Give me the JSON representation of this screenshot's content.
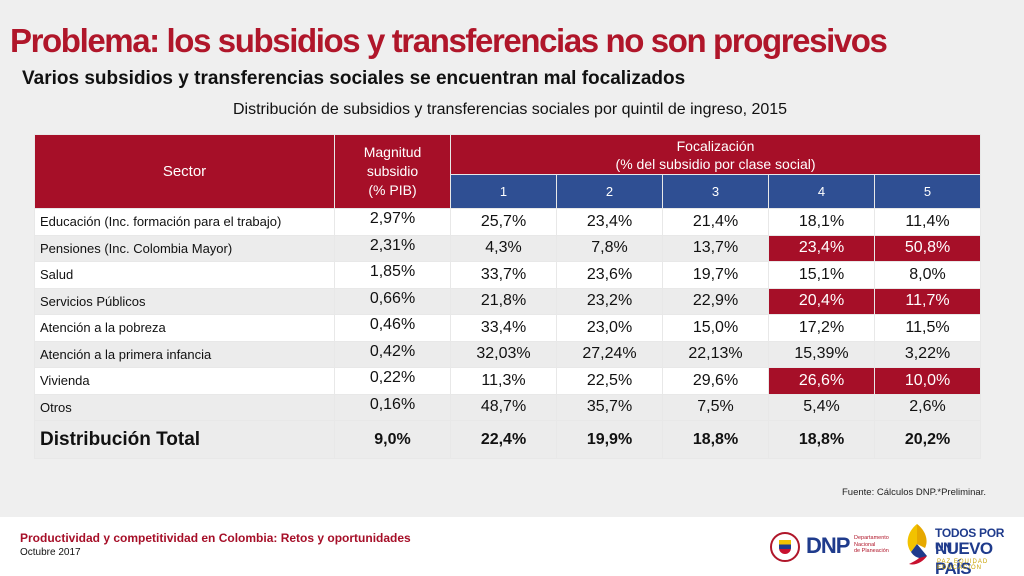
{
  "title": "Problema: los subsidios y transferencias no son progresivos",
  "subtitle": "Varios subsidios y transferencias sociales se encuentran mal focalizados",
  "table_caption": "Distribución de subsidios y transferencias sociales por quintil de ingreso, 2015",
  "table": {
    "header_sector": "Sector",
    "header_magnitude": [
      "Magnitud",
      "subsidio",
      "(% PIB)"
    ],
    "header_focalization": [
      "Focalización",
      "(% del subsidio por clase social)"
    ],
    "quintiles": [
      "1",
      "2",
      "3",
      "4",
      "5"
    ],
    "rows": [
      {
        "sector": "Educación (Inc. formación para el trabajo)",
        "magnitude": "2,97%",
        "values": [
          "25,7%",
          "23,4%",
          "21,4%",
          "18,1%",
          "11,4%"
        ]
      },
      {
        "sector": "Pensiones (Inc. Colombia Mayor)",
        "magnitude": "2,31%",
        "values": [
          "4,3%",
          "7,8%",
          "13,7%",
          "23,4%",
          "50,8%"
        ]
      },
      {
        "sector": "Salud",
        "magnitude": "1,85%",
        "values": [
          "33,7%",
          "23,6%",
          "19,7%",
          "15,1%",
          "8,0%"
        ]
      },
      {
        "sector": "Servicios Públicos",
        "magnitude": "0,66%",
        "values": [
          "21,8%",
          "23,2%",
          "22,9%",
          "20,4%",
          "11,7%"
        ]
      },
      {
        "sector": "Atención a la pobreza",
        "magnitude": "0,46%",
        "values": [
          "33,4%",
          "23,0%",
          "15,0%",
          "17,2%",
          "11,5%"
        ]
      },
      {
        "sector": "Atención a la primera infancia",
        "magnitude": "0,42%",
        "values": [
          "32,03%",
          "27,24%",
          "22,13%",
          "15,39%",
          "3,22%"
        ]
      },
      {
        "sector": "Vivienda",
        "magnitude": "0,22%",
        "values": [
          "11,3%",
          "22,5%",
          "29,6%",
          "26,6%",
          "10,0%"
        ]
      },
      {
        "sector": "Otros",
        "magnitude": "0,16%",
        "values": [
          "48,7%",
          "35,7%",
          "7,5%",
          "5,4%",
          "2,6%"
        ]
      }
    ],
    "highlighted_rows": [
      "Pensiones (Inc. Colombia Mayor)",
      "Servicios Públicos",
      "Vivienda"
    ],
    "highlighted_quintiles": [
      "4",
      "5"
    ],
    "total": {
      "label": "Distribución Total",
      "magnitude": "9,0%",
      "values": [
        "22,4%",
        "19,9%",
        "18,8%",
        "18,8%",
        "20,2%"
      ]
    }
  },
  "source": "Fuente: Cálculos DNP.*Preliminar.",
  "footer": {
    "title": "Productividad y competitividad en Colombia: Retos y oportunidades",
    "date": "Octubre 2017"
  },
  "logos": {
    "dnp": {
      "name": "DNP",
      "subtitle": [
        "Departamento",
        "Nacional",
        "de Planeación"
      ]
    },
    "government": {
      "line1": "TODOS POR UN",
      "line2": "NUEVO PAÍS",
      "line3": "PAZ  EQUIDAD  EDUCACIÓN"
    }
  },
  "colors": {
    "accent_red": "#a60f28",
    "header_blue": "#2f4f93",
    "title_red": "#b0162a"
  }
}
